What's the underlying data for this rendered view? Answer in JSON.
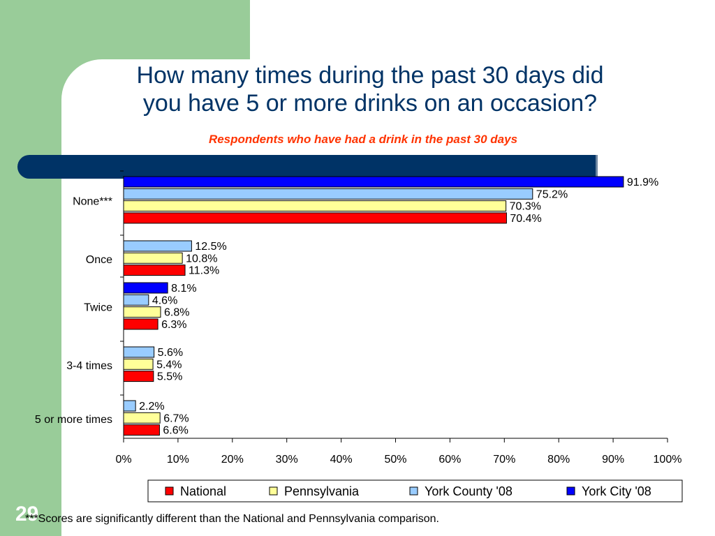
{
  "title_line1": "How many times during the past 30 days did",
  "title_line2": "you have 5 or more drinks on an occasion?",
  "subtitle": "Respondents who have had a drink in the past 30 days",
  "footnote": "***Scores are significantly different than the National and Pennsylvania comparison.",
  "slide_number": "29",
  "colors": {
    "side_band": "#99cc99",
    "title_bar": "#003366",
    "title_text": "#003366",
    "subtitle_text": "#ff3300"
  },
  "chart_data": {
    "type": "bar",
    "orientation": "horizontal",
    "categories": [
      "None***",
      "Once",
      "Twice",
      "3-4 times",
      "5 or more times"
    ],
    "series": [
      {
        "name": "York City '08",
        "color": "#0000ff",
        "values": [
          91.9,
          null,
          8.1,
          null,
          null
        ],
        "labels": [
          "91.9%",
          "",
          "8.1%",
          "",
          ""
        ]
      },
      {
        "name": "York County '08",
        "color": "#99ccff",
        "values": [
          75.2,
          12.5,
          4.6,
          5.6,
          2.2
        ],
        "labels": [
          "75.2%",
          "12.5%",
          "4.6%",
          "5.6%",
          "2.2%"
        ]
      },
      {
        "name": "Pennsylvania",
        "color": "#ffff99",
        "values": [
          70.3,
          10.8,
          6.8,
          5.4,
          6.7
        ],
        "labels": [
          "70.3%",
          "10.8%",
          "6.8%",
          "5.4%",
          "6.7%"
        ]
      },
      {
        "name": "National",
        "color": "#ff0000",
        "values": [
          70.4,
          11.3,
          6.3,
          5.5,
          6.6
        ],
        "labels": [
          "70.4%",
          "11.3%",
          "6.3%",
          "5.5%",
          "6.6%"
        ]
      }
    ],
    "x_ticks": [
      "0%",
      "10%",
      "20%",
      "30%",
      "40%",
      "50%",
      "60%",
      "70%",
      "80%",
      "90%",
      "100%"
    ],
    "xlim": [
      0,
      100
    ],
    "legend": {
      "placement": "bottom",
      "entries": [
        {
          "name": "National",
          "color": "#ff0000"
        },
        {
          "name": "Pennsylvania",
          "color": "#ffff99"
        },
        {
          "name": "York County '08",
          "color": "#99ccff"
        },
        {
          "name": "York City '08",
          "color": "#0000ff"
        }
      ]
    }
  }
}
